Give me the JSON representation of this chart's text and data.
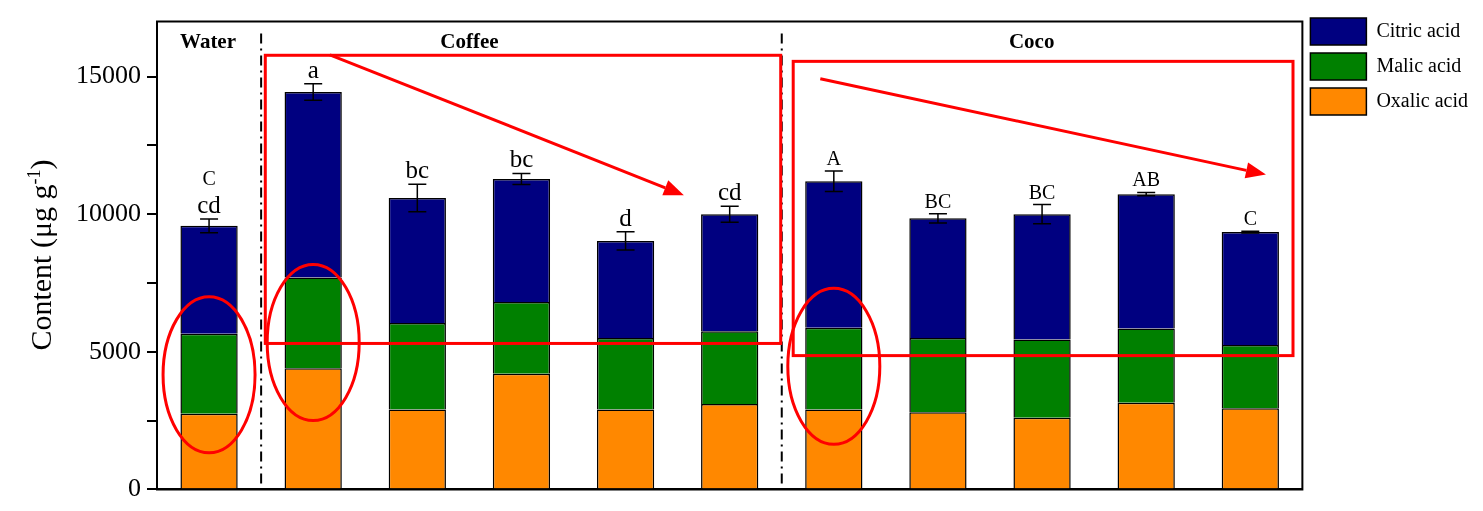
{
  "chart_data": {
    "type": "bar",
    "stacked": true,
    "categories": [
      null,
      null,
      null,
      null,
      null,
      null,
      null,
      null,
      null,
      null,
      null
    ],
    "series": [
      {
        "name": "Oxalic acid",
        "color": "#ff8800",
        "values": [
          2750,
          4400,
          2900,
          4200,
          2900,
          3100,
          2900,
          2800,
          2600,
          3150,
          2950
        ]
      },
      {
        "name": "Malic acid",
        "color": "#008000",
        "values": [
          2910,
          3300,
          3150,
          2610,
          2600,
          2650,
          2970,
          2700,
          2850,
          2700,
          2300
        ]
      },
      {
        "name": "Citric acid",
        "color": "#000080",
        "values": [
          3920,
          6740,
          4540,
          4470,
          3530,
          4250,
          5330,
          4350,
          4550,
          4880,
          4100
        ],
        "errors": [
          250,
          300,
          500,
          200,
          330,
          290,
          370,
          170,
          350,
          60,
          30
        ],
        "value_labels": [
          "C\ncd",
          "a",
          "bc",
          "bc",
          "d",
          "cd",
          "A",
          "BC",
          "BC",
          "AB",
          "C"
        ]
      }
    ],
    "ylabel": "Content (μg g$^{-1}$)",
    "ylim": [
      0,
      17000
    ],
    "yticks": [
      0,
      {
        "value": 2500,
        "label": null
      },
      5000,
      {
        "value": 7500,
        "label": null
      },
      10000,
      {
        "value": 12500,
        "label": null
      },
      15000
    ],
    "annotations": [
      "Water",
      "Coffee",
      "Coco"
    ],
    "legend": "right",
    "grid": false
  }
}
